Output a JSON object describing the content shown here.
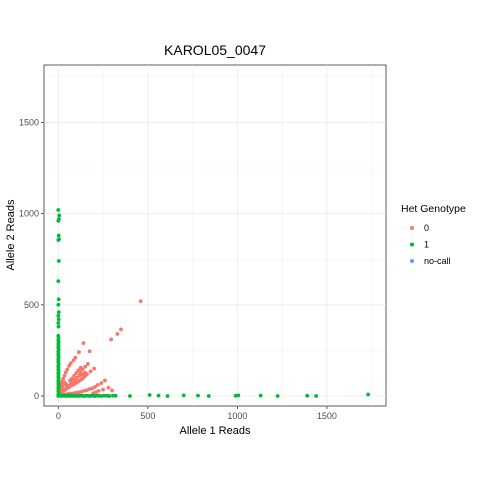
{
  "chart_data": {
    "type": "scatter",
    "title": "KAROL05_0047",
    "xlabel": "Allele 1 Reads",
    "ylabel": "Allele 2 Reads",
    "xlim": [
      -80,
      1830
    ],
    "ylim": [
      -55,
      1815
    ],
    "x_ticks": [
      0,
      500,
      1000,
      1500
    ],
    "y_ticks": [
      0,
      500,
      1000,
      1500
    ],
    "grid": true,
    "legend_position": "right",
    "legend_title": "Het Genotype",
    "series": [
      {
        "name": "0",
        "color": "#F8766D",
        "points": [
          [
            460,
            520
          ],
          [
            350,
            365
          ],
          [
            330,
            340
          ],
          [
            295,
            310
          ],
          [
            175,
            245
          ],
          [
            140,
            290
          ],
          [
            115,
            240
          ],
          [
            95,
            210
          ],
          [
            85,
            195
          ],
          [
            70,
            180
          ],
          [
            60,
            165
          ],
          [
            50,
            145
          ],
          [
            42,
            130
          ],
          [
            35,
            112
          ],
          [
            28,
            95
          ],
          [
            22,
            80
          ],
          [
            18,
            70
          ],
          [
            14,
            58
          ],
          [
            10,
            45
          ],
          [
            8,
            38
          ],
          [
            200,
            150
          ],
          [
            180,
            135
          ],
          [
            160,
            120
          ],
          [
            150,
            110
          ],
          [
            140,
            100
          ],
          [
            130,
            92
          ],
          [
            120,
            85
          ],
          [
            110,
            78
          ],
          [
            100,
            72
          ],
          [
            90,
            66
          ],
          [
            80,
            60
          ],
          [
            70,
            55
          ],
          [
            60,
            50
          ],
          [
            55,
            45
          ],
          [
            48,
            42
          ],
          [
            40,
            38
          ],
          [
            35,
            33
          ],
          [
            30,
            28
          ],
          [
            25,
            25
          ],
          [
            20,
            22
          ],
          [
            15,
            18
          ],
          [
            12,
            14
          ],
          [
            8,
            10
          ],
          [
            5,
            8
          ],
          [
            260,
            85
          ],
          [
            240,
            70
          ],
          [
            220,
            60
          ],
          [
            205,
            50
          ],
          [
            190,
            42
          ],
          [
            175,
            38
          ],
          [
            160,
            32
          ],
          [
            145,
            28
          ],
          [
            130,
            24
          ],
          [
            115,
            20
          ],
          [
            100,
            18
          ],
          [
            85,
            15
          ],
          [
            70,
            13
          ],
          [
            58,
            11
          ],
          [
            45,
            9
          ],
          [
            38,
            7
          ],
          [
            30,
            6
          ],
          [
            22,
            5
          ],
          [
            15,
            4
          ],
          [
            280,
            45
          ],
          [
            300,
            30
          ],
          [
            250,
            35
          ],
          [
            225,
            28
          ],
          [
            210,
            20
          ],
          [
            195,
            15
          ],
          [
            65,
            85
          ],
          [
            75,
            95
          ],
          [
            88,
            110
          ],
          [
            100,
            125
          ],
          [
            112,
            140
          ],
          [
            125,
            155
          ],
          [
            105,
            100
          ],
          [
            95,
            90
          ],
          [
            85,
            80
          ],
          [
            75,
            70
          ],
          [
            68,
            62
          ],
          [
            58,
            58
          ],
          [
            50,
            52
          ],
          [
            45,
            60
          ],
          [
            40,
            68
          ],
          [
            32,
            75
          ],
          [
            27,
            62
          ],
          [
            23,
            50
          ],
          [
            18,
            42
          ],
          [
            12,
            32
          ],
          [
            165,
            175
          ],
          [
            150,
            160
          ],
          [
            135,
            145
          ],
          [
            122,
            130
          ],
          [
            118,
            112
          ],
          [
            135,
            118
          ],
          [
            148,
            128
          ]
        ]
      },
      {
        "name": "1",
        "color": "#00BA38",
        "points": [
          [
            0,
            1020
          ],
          [
            5,
            990
          ],
          [
            3,
            970
          ],
          [
            0,
            960
          ],
          [
            2,
            880
          ],
          [
            4,
            860
          ],
          [
            0,
            855
          ],
          [
            3,
            740
          ],
          [
            0,
            630
          ],
          [
            2,
            530
          ],
          [
            0,
            500
          ],
          [
            3,
            460
          ],
          [
            0,
            440
          ],
          [
            2,
            420
          ],
          [
            0,
            400
          ],
          [
            1,
            380
          ],
          [
            0,
            330
          ],
          [
            1,
            320
          ],
          [
            0,
            305
          ],
          [
            2,
            295
          ],
          [
            0,
            285
          ],
          [
            1,
            275
          ],
          [
            0,
            265
          ],
          [
            2,
            255
          ],
          [
            0,
            245
          ],
          [
            1,
            235
          ],
          [
            0,
            225
          ],
          [
            2,
            215
          ],
          [
            0,
            205
          ],
          [
            1,
            195
          ],
          [
            0,
            185
          ],
          [
            2,
            175
          ],
          [
            0,
            165
          ],
          [
            1,
            155
          ],
          [
            0,
            145
          ],
          [
            2,
            135
          ],
          [
            0,
            125
          ],
          [
            1,
            115
          ],
          [
            0,
            105
          ],
          [
            2,
            95
          ],
          [
            0,
            85
          ],
          [
            1,
            75
          ],
          [
            0,
            65
          ],
          [
            2,
            55
          ],
          [
            0,
            45
          ],
          [
            1,
            35
          ],
          [
            0,
            25
          ],
          [
            2,
            15
          ],
          [
            0,
            8
          ],
          [
            1,
            3
          ],
          [
            0,
            0
          ],
          [
            8,
            2
          ],
          [
            15,
            1
          ],
          [
            22,
            0
          ],
          [
            30,
            2
          ],
          [
            38,
            1
          ],
          [
            45,
            0
          ],
          [
            52,
            3
          ],
          [
            60,
            1
          ],
          [
            68,
            0
          ],
          [
            75,
            2
          ],
          [
            82,
            1
          ],
          [
            90,
            0
          ],
          [
            98,
            2
          ],
          [
            105,
            1
          ],
          [
            115,
            0
          ],
          [
            125,
            2
          ],
          [
            135,
            1
          ],
          [
            145,
            0
          ],
          [
            155,
            2
          ],
          [
            165,
            1
          ],
          [
            175,
            0
          ],
          [
            185,
            2
          ],
          [
            195,
            1
          ],
          [
            205,
            0
          ],
          [
            215,
            2
          ],
          [
            225,
            1
          ],
          [
            240,
            0
          ],
          [
            255,
            2
          ],
          [
            270,
            1
          ],
          [
            285,
            0
          ],
          [
            305,
            2
          ],
          [
            320,
            1
          ],
          [
            400,
            0
          ],
          [
            510,
            5
          ],
          [
            560,
            2
          ],
          [
            610,
            0
          ],
          [
            700,
            3
          ],
          [
            780,
            2
          ],
          [
            840,
            0
          ],
          [
            990,
            1
          ],
          [
            1005,
            3
          ],
          [
            1130,
            2
          ],
          [
            1225,
            0
          ],
          [
            1390,
            1
          ],
          [
            1440,
            0
          ],
          [
            1730,
            8
          ]
        ]
      },
      {
        "name": "no-call",
        "color": "#619CFF",
        "points": []
      }
    ]
  }
}
